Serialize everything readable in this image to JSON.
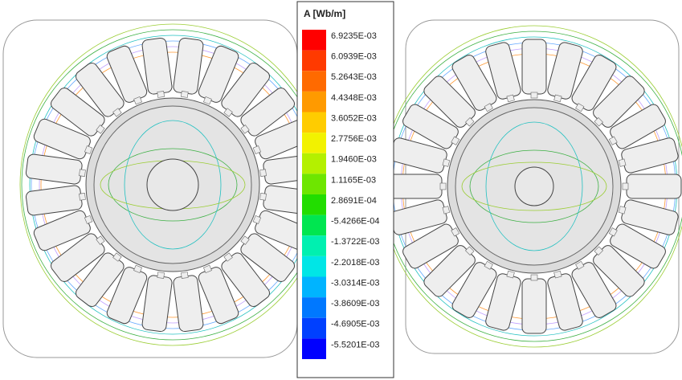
{
  "legend": {
    "title": "A [Wb/m]",
    "levels": [
      "6.9235E-03",
      "6.0939E-03",
      "5.2643E-03",
      "4.4348E-03",
      "3.6052E-03",
      "2.7756E-03",
      "1.9460E-03",
      "1.1165E-03",
      "2.8691E-04",
      "-5.4266E-04",
      "-1.3722E-03",
      "-2.2018E-03",
      "-3.0314E-03",
      "-3.8609E-03",
      "-4.6905E-03",
      "-5.5201E-03"
    ],
    "colors": [
      "#ff0000",
      "#ff3a00",
      "#ff6a00",
      "#ff9a00",
      "#ffcc00",
      "#f2f200",
      "#b4f000",
      "#6ee600",
      "#22dd00",
      "#00e650",
      "#00f0b0",
      "#00e6e6",
      "#00b4ff",
      "#0078ff",
      "#0040ff",
      "#0000ff"
    ]
  }
}
